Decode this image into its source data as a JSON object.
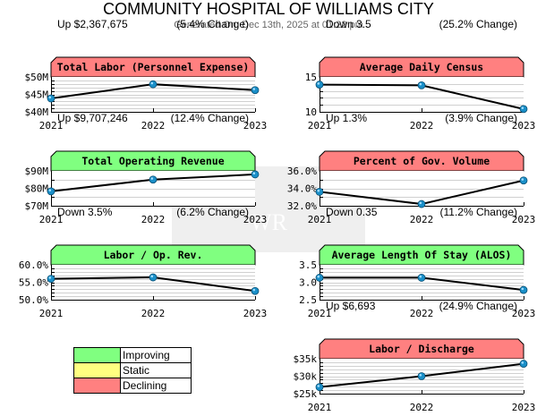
{
  "header": {
    "title": "COMMUNITY HOSPITAL OF WILLIAMS CITY",
    "generated": "Generated On: Dec 13th, 2025 at 01:22 pm"
  },
  "watermark": {
    "text": "WR"
  },
  "colors": {
    "improving": "#80ff80",
    "static": "#ffff80",
    "declining": "#ff8080",
    "point": "#1a8fc8",
    "line": "#000000",
    "grid": "#d0d0d0"
  },
  "legend": [
    {
      "label": "Improving",
      "color": "#80ff80"
    },
    {
      "label": "Static",
      "color": "#ffff80"
    },
    {
      "label": "Declining",
      "color": "#ff8080"
    }
  ],
  "chart_data": [
    {
      "type": "line",
      "title": "Total Labor (Personnel Expense)",
      "status": "declining",
      "change_text": "Up $2,367,675",
      "pct_text": "(5.4% Change)",
      "x": [
        "2021",
        "2022",
        "2023"
      ],
      "values": [
        43.85,
        47.9,
        46.22
      ],
      "ylim": [
        40,
        50
      ],
      "yticks": [
        {
          "v": 50,
          "label": "$50M"
        },
        {
          "v": 45,
          "label": "$45M"
        },
        {
          "v": 40,
          "label": "$40M"
        }
      ],
      "minor_step": 1,
      "grid": true
    },
    {
      "type": "line",
      "title": "Average Daily Census",
      "status": "declining",
      "change_text": "Down 3.5",
      "pct_text": "(25.2% Change)",
      "x": [
        "2021",
        "2022",
        "2023"
      ],
      "values": [
        13.9,
        13.8,
        10.4
      ],
      "ylim": [
        10,
        15
      ],
      "yticks": [
        {
          "v": 15,
          "label": "15"
        },
        {
          "v": 10,
          "label": "10"
        }
      ],
      "minor_step": 1,
      "grid": true
    },
    {
      "type": "line",
      "title": "Total Operating Revenue",
      "status": "improving",
      "change_text": "Up $9,707,246",
      "pct_text": "(12.4% Change)",
      "x": [
        "2021",
        "2022",
        "2023"
      ],
      "values": [
        78.28,
        85.0,
        87.99
      ],
      "ylim": [
        70,
        90
      ],
      "yticks": [
        {
          "v": 90,
          "label": "$90M"
        },
        {
          "v": 80,
          "label": "$80M"
        },
        {
          "v": 70,
          "label": "$70M"
        }
      ],
      "minor_step": 5,
      "grid": true
    },
    {
      "type": "line",
      "title": "Percent of Gov. Volume",
      "status": "declining",
      "change_text": "Up 1.3%",
      "pct_text": "(3.9% Change)",
      "x": [
        "2021",
        "2022",
        "2023"
      ],
      "values": [
        33.6,
        32.2,
        34.9
      ],
      "ylim": [
        32,
        36
      ],
      "yticks": [
        {
          "v": 36,
          "label": "36.0%"
        },
        {
          "v": 34,
          "label": "34.0%"
        },
        {
          "v": 32,
          "label": "32.0%"
        }
      ],
      "minor_step": 1,
      "grid": true
    },
    {
      "type": "line",
      "title": "Labor / Op. Rev.",
      "status": "improving",
      "change_text": "Down 3.5%",
      "pct_text": "(6.2% Change)",
      "x": [
        "2021",
        "2022",
        "2023"
      ],
      "values": [
        56.0,
        56.4,
        52.5
      ],
      "ylim": [
        50,
        60
      ],
      "yticks": [
        {
          "v": 60,
          "label": "60.0%"
        },
        {
          "v": 55,
          "label": "55.0%"
        },
        {
          "v": 50,
          "label": "50.0%"
        }
      ],
      "minor_step": 1,
      "grid": true
    },
    {
      "type": "line",
      "title": "Average Length Of Stay (ALOS)",
      "status": "improving",
      "change_text": "Down 0.35",
      "pct_text": "(11.2% Change)",
      "x": [
        "2021",
        "2022",
        "2023"
      ],
      "values": [
        3.13,
        3.13,
        2.78
      ],
      "ylim": [
        2.5,
        3.5
      ],
      "yticks": [
        {
          "v": 3.5,
          "label": "3.5"
        },
        {
          "v": 3.0,
          "label": "3.0"
        },
        {
          "v": 2.5,
          "label": "2.5"
        }
      ],
      "minor_step": 0.1,
      "grid": true
    },
    {
      "type": "line",
      "title": "Labor / Discharge",
      "status": "declining",
      "change_text": "Up $6,693",
      "pct_text": "(24.9% Change)",
      "x": [
        "2021",
        "2022",
        "2023"
      ],
      "values": [
        26.88,
        30.0,
        33.57
      ],
      "ylim": [
        25,
        35
      ],
      "yticks": [
        {
          "v": 35,
          "label": "$35k"
        },
        {
          "v": 30,
          "label": "$30k"
        },
        {
          "v": 25,
          "label": "$25k"
        }
      ],
      "minor_step": 1,
      "grid": true
    }
  ]
}
